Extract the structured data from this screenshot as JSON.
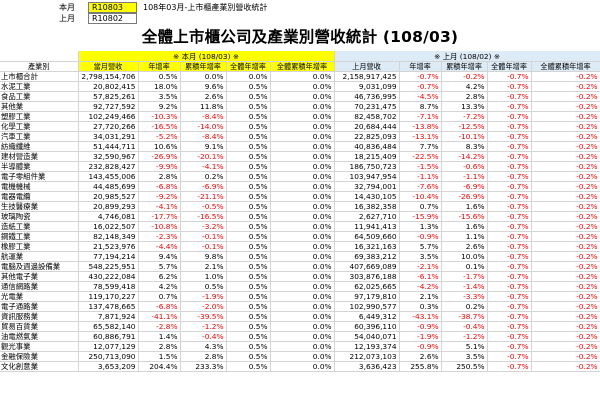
{
  "info": {
    "this_month_label": "本月",
    "this_month_code": "R10803",
    "desc": "108年03月-上市櫃產業別營收統計",
    "last_month_label": "上月",
    "last_month_code": "R10802"
  },
  "title": "全體上市櫃公司及產業別營收統計 (108/03)",
  "groups": {
    "current": "※ 本月 (108/03) ※",
    "previous": "※ 上月 (108/02) ※"
  },
  "headers": [
    "產業別",
    "當月營收",
    "年增率",
    "累積年增率",
    "全體年增率",
    "全體累積年增率",
    "上月營收",
    "年增率",
    "累積年增率",
    "全體年增率",
    "全體累積年增率"
  ],
  "rows": [
    [
      "上市櫃合計",
      "2,798,154,706",
      "0.5%",
      "0.0%",
      "0.0%",
      "0.0%",
      "2,158,917,425",
      "-0.7%",
      "-0.2%",
      "-0.7%",
      "-0.2%"
    ],
    [
      "水泥工業",
      "20,802,415",
      "18.0%",
      "9.6%",
      "0.5%",
      "0.0%",
      "9,031,099",
      "-0.7%",
      "4.2%",
      "-0.7%",
      "-0.2%"
    ],
    [
      "食品工業",
      "57,825,261",
      "3.5%",
      "2.6%",
      "0.5%",
      "0.0%",
      "46,736,995",
      "-4.5%",
      "2.8%",
      "-0.7%",
      "-0.2%"
    ],
    [
      "其他業",
      "92,727,592",
      "9.2%",
      "11.8%",
      "0.5%",
      "0.0%",
      "70,231,475",
      "8.7%",
      "13.3%",
      "-0.7%",
      "-0.2%"
    ],
    [
      "塑膠工業",
      "102,249,466",
      "-10.3%",
      "-8.4%",
      "0.5%",
      "0.0%",
      "82,458,702",
      "-7.1%",
      "-7.2%",
      "-0.7%",
      "-0.2%"
    ],
    [
      "化學工業",
      "27,720,266",
      "-16.5%",
      "-14.0%",
      "0.5%",
      "0.0%",
      "20,684,444",
      "-13.8%",
      "-12.5%",
      "-0.7%",
      "-0.2%"
    ],
    [
      "汽車工業",
      "34,031,291",
      "-5.2%",
      "-8.4%",
      "0.5%",
      "0.0%",
      "22,825,093",
      "-13.1%",
      "-10.1%",
      "-0.7%",
      "-0.2%"
    ],
    [
      "紡織纖維",
      "51,444,711",
      "10.6%",
      "9.1%",
      "0.5%",
      "0.0%",
      "40,836,484",
      "7.7%",
      "8.3%",
      "-0.7%",
      "-0.2%"
    ],
    [
      "建材營造業",
      "32,590,967",
      "-26.9%",
      "-20.1%",
      "0.5%",
      "0.0%",
      "18,215,409",
      "-22.5%",
      "-14.2%",
      "-0.7%",
      "-0.2%"
    ],
    [
      "半導體業",
      "232,828,427",
      "-9.9%",
      "-4.1%",
      "0.5%",
      "0.0%",
      "186,750,723",
      "-1.5%",
      "-0.6%",
      "-0.7%",
      "-0.2%"
    ],
    [
      "電子零組件業",
      "143,455,006",
      "2.8%",
      "0.2%",
      "0.5%",
      "0.0%",
      "103,947,954",
      "-1.1%",
      "-1.1%",
      "-0.7%",
      "-0.2%"
    ],
    [
      "電機機械",
      "44,485,699",
      "-6.8%",
      "-6.9%",
      "0.5%",
      "0.0%",
      "32,794,001",
      "-7.6%",
      "-6.9%",
      "-0.7%",
      "-0.2%"
    ],
    [
      "電器電纜",
      "20,985,527",
      "-9.2%",
      "-21.1%",
      "0.5%",
      "0.0%",
      "14,430,105",
      "-10.4%",
      "-26.9%",
      "-0.7%",
      "-0.2%"
    ],
    [
      "生技醫療業",
      "20,899,293",
      "-4.1%",
      "-0.5%",
      "0.5%",
      "0.0%",
      "16,382,358",
      "0.7%",
      "1.6%",
      "-0.7%",
      "-0.2%"
    ],
    [
      "玻璃陶瓷",
      "4,746,081",
      "-17.7%",
      "-16.5%",
      "0.5%",
      "0.0%",
      "2,627,710",
      "-15.9%",
      "-15.6%",
      "-0.7%",
      "-0.2%"
    ],
    [
      "造紙工業",
      "16,022,507",
      "-10.8%",
      "-3.2%",
      "0.5%",
      "0.0%",
      "11,941,413",
      "1.3%",
      "1.6%",
      "-0.7%",
      "-0.2%"
    ],
    [
      "鋼鐵工業",
      "82,148,349",
      "-2.3%",
      "-0.1%",
      "0.5%",
      "0.0%",
      "64,509,660",
      "-0.9%",
      "1.1%",
      "-0.7%",
      "-0.2%"
    ],
    [
      "橡膠工業",
      "21,523,976",
      "-4.4%",
      "-0.1%",
      "0.5%",
      "0.0%",
      "16,321,163",
      "5.7%",
      "2.6%",
      "-0.7%",
      "-0.2%"
    ],
    [
      "航運業",
      "77,194,214",
      "9.4%",
      "9.8%",
      "0.5%",
      "0.0%",
      "69,383,212",
      "3.5%",
      "10.0%",
      "-0.7%",
      "-0.2%"
    ],
    [
      "電腦及週邊設備業",
      "548,225,951",
      "5.7%",
      "2.1%",
      "0.5%",
      "0.0%",
      "407,669,089",
      "-2.1%",
      "0.1%",
      "-0.7%",
      "-0.2%"
    ],
    [
      "其他電子業",
      "430,222,084",
      "6.2%",
      "1.0%",
      "0.5%",
      "0.0%",
      "303,876,188",
      "-6.1%",
      "-1.7%",
      "-0.7%",
      "-0.2%"
    ],
    [
      "通信網路業",
      "78,599,418",
      "4.2%",
      "0.5%",
      "0.5%",
      "0.0%",
      "62,025,665",
      "-4.2%",
      "-1.4%",
      "-0.7%",
      "-0.2%"
    ],
    [
      "光電業",
      "119,170,227",
      "0.7%",
      "-1.9%",
      "0.5%",
      "0.0%",
      "97,179,810",
      "2.1%",
      "-3.3%",
      "-0.7%",
      "-0.2%"
    ],
    [
      "電子通路業",
      "137,478,665",
      "-6.8%",
      "-2.0%",
      "0.5%",
      "0.0%",
      "102,990,577",
      "0.3%",
      "0.2%",
      "-0.7%",
      "-0.2%"
    ],
    [
      "資訊服務業",
      "7,871,924",
      "-41.1%",
      "-39.5%",
      "0.5%",
      "0.0%",
      "6,449,312",
      "-43.1%",
      "-38.7%",
      "-0.7%",
      "-0.2%"
    ],
    [
      "貿易百貨業",
      "65,582,140",
      "-2.8%",
      "-1.2%",
      "0.5%",
      "0.0%",
      "60,396,110",
      "-0.9%",
      "-0.4%",
      "-0.7%",
      "-0.2%"
    ],
    [
      "油電燃氣業",
      "60,886,791",
      "1.4%",
      "-0.4%",
      "0.5%",
      "0.0%",
      "54,040,071",
      "-1.9%",
      "-1.2%",
      "-0.7%",
      "-0.2%"
    ],
    [
      "觀光事業",
      "12,077,129",
      "2.8%",
      "4.3%",
      "0.5%",
      "0.0%",
      "12,193,374",
      "-0.9%",
      "5.1%",
      "-0.7%",
      "-0.2%"
    ],
    [
      "金融保險業",
      "250,713,090",
      "1.5%",
      "2.8%",
      "0.5%",
      "0.0%",
      "212,073,103",
      "2.6%",
      "3.5%",
      "-0.7%",
      "-0.2%"
    ],
    [
      "文化創意業",
      "3,653,209",
      "204.4%",
      "233.3%",
      "0.5%",
      "0.0%",
      "3,636,423",
      "255.8%",
      "250.5%",
      "-0.7%",
      "-0.2%"
    ]
  ],
  "colors": {
    "header_current": "#ffff00",
    "header_previous": "#ddebf7",
    "negative": "#ff0000"
  }
}
